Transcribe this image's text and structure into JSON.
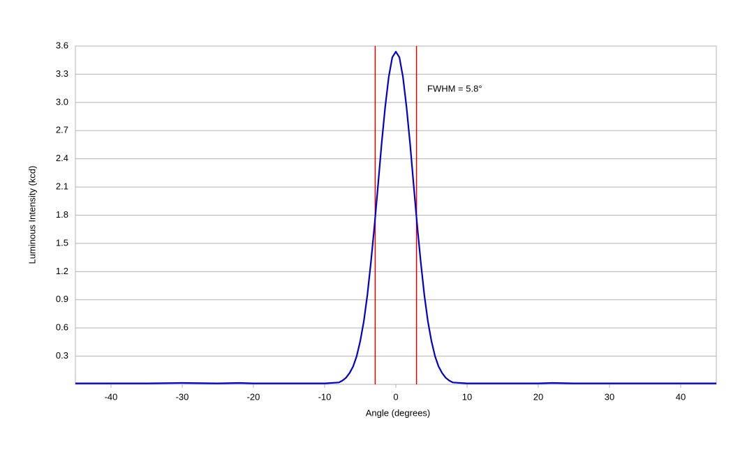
{
  "chart_data": {
    "type": "line",
    "x_label": "Angle (degrees)",
    "y_label": "Luminous Intensity (kcd)",
    "annotation": "FWHM = 5.8°",
    "x": [
      -45,
      -40,
      -35,
      -30,
      -25,
      -22,
      -20,
      -15,
      -10,
      -8,
      -7.5,
      -7,
      -6.5,
      -6,
      -5.5,
      -5,
      -4.5,
      -4,
      -3.5,
      -3,
      -2.5,
      -2,
      -1.5,
      -1,
      -0.5,
      0,
      0.5,
      1,
      1.5,
      2,
      2.5,
      3,
      3.5,
      4,
      4.5,
      5,
      5.5,
      6,
      6.5,
      7,
      7.5,
      8,
      10,
      15,
      20,
      22,
      25,
      30,
      35,
      40,
      45
    ],
    "series": [
      {
        "color": "#0000cc",
        "values": [
          0.01,
          0.01,
          0.01,
          0.015,
          0.01,
          0.015,
          0.01,
          0.01,
          0.01,
          0.02,
          0.04,
          0.07,
          0.12,
          0.19,
          0.3,
          0.46,
          0.67,
          0.95,
          1.3,
          1.69,
          2.12,
          2.56,
          2.95,
          3.27,
          3.48,
          3.54,
          3.48,
          3.27,
          2.95,
          2.56,
          2.12,
          1.69,
          1.3,
          0.95,
          0.67,
          0.46,
          0.3,
          0.19,
          0.12,
          0.07,
          0.04,
          0.02,
          0.01,
          0.01,
          0.01,
          0.015,
          0.01,
          0.01,
          0.01,
          0.01,
          0.01
        ]
      }
    ],
    "vertical_lines": {
      "color": "#e00000",
      "values": [
        -2.9,
        2.9
      ]
    },
    "xlim": [
      -45,
      45
    ],
    "xticks": [
      -40,
      -30,
      -20,
      -10,
      0,
      10,
      20,
      30,
      40
    ],
    "ylim": [
      0,
      3.6
    ],
    "yticks": [
      0.3,
      0.6,
      0.9,
      1.2,
      1.5,
      1.8,
      2.1,
      2.4,
      2.7,
      {
        "value": 3,
        "label": "3.0"
      },
      3.3,
      3.6
    ],
    "grid": true
  }
}
